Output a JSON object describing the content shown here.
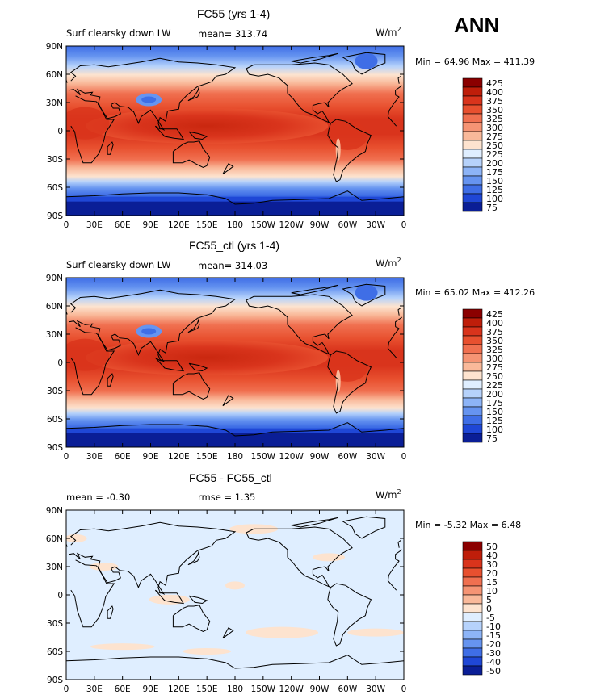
{
  "season": "ANN",
  "chart_data": [
    {
      "type": "heatmap",
      "title": "FC55 (yrs 1-4)",
      "variable": "Surf clearsky down LW",
      "mean_text": "mean= 313.74",
      "units": "W/m",
      "units_sup": "2",
      "minmax_text": "Min =  64.96 Max = 411.39",
      "colorbar_levels": [
        "425",
        "400",
        "375",
        "350",
        "325",
        "300",
        "275",
        "250",
        "225",
        "200",
        "175",
        "150",
        "125",
        "100",
        "75"
      ],
      "colorbar_colors": [
        "#8b0000",
        "#bf1e0a",
        "#d9341c",
        "#e8502f",
        "#f07050",
        "#f59474",
        "#f9b99a",
        "#fde3cf",
        "#dfeeff",
        "#b6d2fb",
        "#8db4f7",
        "#6694f0",
        "#3f6ee6",
        "#1f47d6",
        "#0a1e96"
      ],
      "lat_labels": [
        "90N",
        "60N",
        "30N",
        "0",
        "30S",
        "60S",
        "90S"
      ],
      "lon_labels": [
        "0",
        "30E",
        "60E",
        "90E",
        "120E",
        "150E",
        "180",
        "150W",
        "120W",
        "90W",
        "60W",
        "30W",
        "0"
      ]
    },
    {
      "type": "heatmap",
      "title": "FC55_ctl (yrs 1-4)",
      "variable": "Surf clearsky down LW",
      "mean_text": "mean= 314.03",
      "units": "W/m",
      "units_sup": "2",
      "minmax_text": "Min =  65.02 Max = 412.26",
      "colorbar_levels": [
        "425",
        "400",
        "375",
        "350",
        "325",
        "300",
        "275",
        "250",
        "225",
        "200",
        "175",
        "150",
        "125",
        "100",
        "75"
      ],
      "colorbar_colors": [
        "#8b0000",
        "#bf1e0a",
        "#d9341c",
        "#e8502f",
        "#f07050",
        "#f59474",
        "#f9b99a",
        "#fde3cf",
        "#dfeeff",
        "#b6d2fb",
        "#8db4f7",
        "#6694f0",
        "#3f6ee6",
        "#1f47d6",
        "#0a1e96"
      ],
      "lat_labels": [
        "90N",
        "60N",
        "30N",
        "0",
        "30S",
        "60S",
        "90S"
      ],
      "lon_labels": [
        "0",
        "30E",
        "60E",
        "90E",
        "120E",
        "150E",
        "180",
        "150W",
        "120W",
        "90W",
        "60W",
        "30W",
        "0"
      ]
    },
    {
      "type": "heatmap",
      "title": "FC55 - FC55_ctl",
      "mean_text": "mean =  -0.30",
      "rmse_text": "rmse =    1.35",
      "units": "W/m",
      "units_sup": "2",
      "minmax_text": "Min =  -5.32 Max =   6.48",
      "colorbar_levels": [
        "50",
        "40",
        "30",
        "20",
        "15",
        "10",
        "5",
        "0",
        "-5",
        "-10",
        "-15",
        "-20",
        "-30",
        "-40",
        "-50"
      ],
      "colorbar_colors": [
        "#8b0000",
        "#bf1e0a",
        "#d9341c",
        "#e8502f",
        "#f07050",
        "#f59474",
        "#f9b99a",
        "#fde3cf",
        "#dfeeff",
        "#b6d2fb",
        "#8db4f7",
        "#6694f0",
        "#3f6ee6",
        "#1f47d6",
        "#0a1e96"
      ],
      "lat_labels": [
        "90N",
        "60N",
        "30N",
        "0",
        "30S",
        "60S",
        "90S"
      ],
      "lon_labels": [
        "0",
        "30E",
        "60E",
        "90E",
        "120E",
        "150E",
        "180",
        "150W",
        "120W",
        "90W",
        "60W",
        "30W",
        "0"
      ]
    }
  ]
}
